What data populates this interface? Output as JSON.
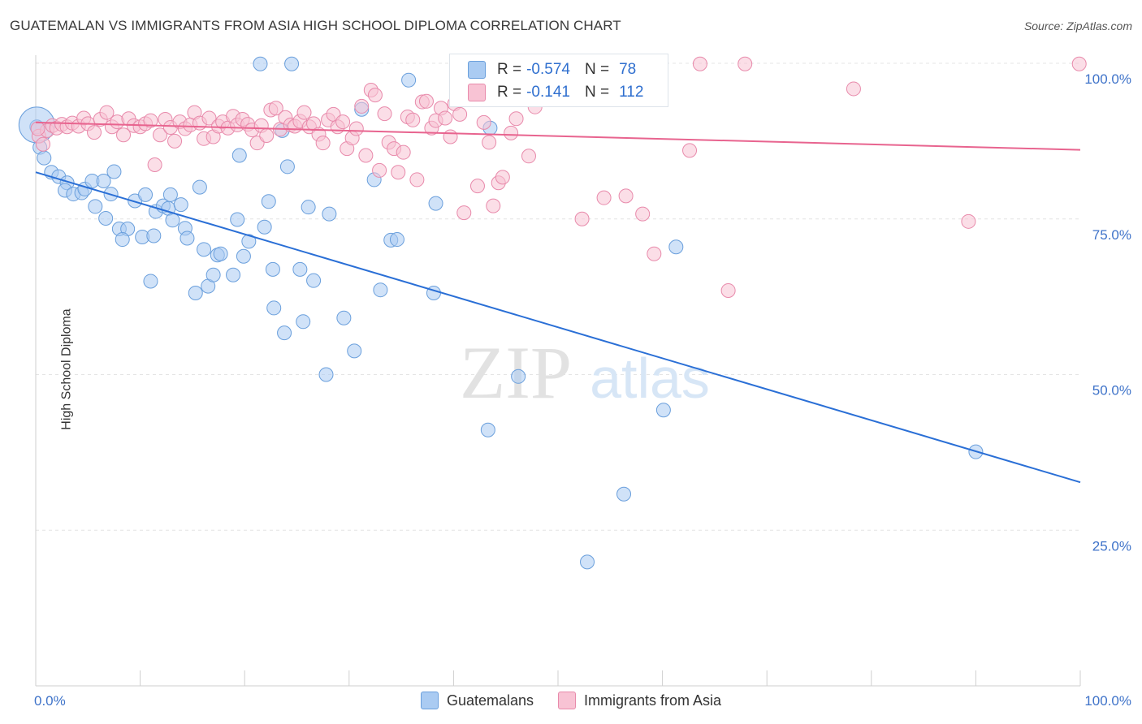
{
  "header": {
    "title": "GUATEMALAN VS IMMIGRANTS FROM ASIA HIGH SCHOOL DIPLOMA CORRELATION CHART",
    "source": "Source: ZipAtlas.com"
  },
  "watermark": {
    "zip": "ZIP",
    "atlas": "atlas"
  },
  "legend_top": {
    "rows": [
      {
        "r_label": "R =",
        "r_value": "-0.574",
        "n_label": "N =",
        "n_value": "78"
      },
      {
        "r_label": "R =",
        "r_value": "-0.141",
        "n_label": "N =",
        "n_value": "112"
      }
    ]
  },
  "legend_bottom": {
    "items": [
      "Guatemalans",
      "Immigrants from Asia"
    ]
  },
  "colors": {
    "blue_fill": "#aacbf2",
    "blue_stroke": "#6a9fdc",
    "blue_line": "#2a6fd6",
    "pink_fill": "#f8c3d4",
    "pink_stroke": "#e88aab",
    "pink_line": "#e8648f",
    "tick_text": "#3f73c9",
    "grid": "#e4e4e4"
  },
  "chart_data": {
    "type": "scatter",
    "title": "GUATEMALAN VS IMMIGRANTS FROM ASIA HIGH SCHOOL DIPLOMA CORRELATION CHART",
    "xlabel": "",
    "ylabel": "High School Diploma",
    "xlim": [
      0,
      100
    ],
    "ylim": [
      0,
      100
    ],
    "x_tick_labels": [
      "0.0%",
      "100.0%"
    ],
    "y_ticks": [
      25,
      50,
      75,
      100
    ],
    "y_tick_labels": [
      "25.0%",
      "50.0%",
      "75.0%",
      "100.0%"
    ],
    "grid": "horizontal dashed",
    "legend_placement": "top-center and bottom",
    "series": [
      {
        "name": "Guatemalans",
        "r": -0.574,
        "n": 78,
        "trend": {
          "x": [
            0,
            100
          ],
          "y": [
            82.5,
            32.7
          ]
        },
        "points": [
          [
            0.1,
            89.8
          ],
          [
            0.4,
            86.5
          ],
          [
            0.8,
            84.8
          ],
          [
            1.5,
            82.5
          ],
          [
            2.2,
            81.8
          ],
          [
            3.0,
            80.8
          ],
          [
            2.8,
            79.6
          ],
          [
            3.6,
            79.0
          ],
          [
            4.4,
            79.2
          ],
          [
            4.7,
            79.8
          ],
          [
            5.4,
            81.1
          ],
          [
            6.5,
            81.1
          ],
          [
            7.5,
            82.6
          ],
          [
            7.2,
            79.0
          ],
          [
            5.7,
            77.0
          ],
          [
            6.7,
            75.1
          ],
          [
            8.0,
            73.4
          ],
          [
            8.8,
            73.4
          ],
          [
            8.3,
            71.7
          ],
          [
            9.5,
            77.9
          ],
          [
            10.2,
            72.1
          ],
          [
            10.5,
            78.9
          ],
          [
            11.0,
            65.0
          ],
          [
            11.3,
            72.3
          ],
          [
            11.5,
            76.2
          ],
          [
            12.2,
            77.1
          ],
          [
            12.7,
            76.7
          ],
          [
            12.9,
            78.9
          ],
          [
            13.1,
            74.8
          ],
          [
            13.9,
            77.3
          ],
          [
            14.3,
            73.5
          ],
          [
            14.5,
            71.9
          ],
          [
            15.7,
            80.1
          ],
          [
            16.1,
            70.1
          ],
          [
            15.3,
            63.1
          ],
          [
            16.5,
            64.2
          ],
          [
            17.0,
            66.0
          ],
          [
            17.4,
            69.2
          ],
          [
            17.7,
            69.4
          ],
          [
            18.9,
            66.0
          ],
          [
            19.3,
            74.9
          ],
          [
            19.5,
            85.2
          ],
          [
            19.9,
            69.0
          ],
          [
            20.4,
            71.4
          ],
          [
            21.5,
            99.9
          ],
          [
            21.9,
            73.7
          ],
          [
            22.3,
            77.8
          ],
          [
            22.7,
            66.9
          ],
          [
            22.8,
            60.7
          ],
          [
            23.8,
            56.7
          ],
          [
            23.6,
            89.2
          ],
          [
            24.1,
            83.4
          ],
          [
            24.5,
            99.9
          ],
          [
            25.3,
            66.9
          ],
          [
            25.6,
            58.5
          ],
          [
            26.1,
            76.9
          ],
          [
            26.6,
            65.1
          ],
          [
            27.8,
            50.0
          ],
          [
            28.1,
            75.8
          ],
          [
            29.5,
            59.1
          ],
          [
            30.5,
            53.8
          ],
          [
            31.2,
            92.6
          ],
          [
            32.4,
            81.3
          ],
          [
            34.0,
            71.6
          ],
          [
            34.6,
            71.7
          ],
          [
            33.0,
            63.6
          ],
          [
            35.7,
            97.3
          ],
          [
            38.1,
            63.1
          ],
          [
            38.3,
            77.5
          ],
          [
            43.3,
            41.1
          ],
          [
            43.5,
            89.6
          ],
          [
            46.2,
            49.7
          ],
          [
            52.8,
            19.9
          ],
          [
            56.3,
            30.8
          ],
          [
            60.1,
            44.3
          ],
          [
            61.3,
            70.5
          ],
          [
            90.0,
            37.6
          ],
          [
            0.1,
            90.1
          ]
        ]
      },
      {
        "name": "Immigrants from Asia",
        "r": -0.141,
        "n": 112,
        "trend": {
          "x": [
            0,
            100
          ],
          "y": [
            90.5,
            86.1
          ]
        },
        "points": [
          [
            0.3,
            88.3
          ],
          [
            0.7,
            87.0
          ],
          [
            1.1,
            89.2
          ],
          [
            1.6,
            90.0
          ],
          [
            2.0,
            89.6
          ],
          [
            2.5,
            90.2
          ],
          [
            3.0,
            89.8
          ],
          [
            3.5,
            90.4
          ],
          [
            4.1,
            89.9
          ],
          [
            4.6,
            91.2
          ],
          [
            5.0,
            90.3
          ],
          [
            5.6,
            88.9
          ],
          [
            6.2,
            91.0
          ],
          [
            6.8,
            92.1
          ],
          [
            7.3,
            89.8
          ],
          [
            7.8,
            90.6
          ],
          [
            8.4,
            88.5
          ],
          [
            8.9,
            91.1
          ],
          [
            9.4,
            90.0
          ],
          [
            10.0,
            89.8
          ],
          [
            10.5,
            90.3
          ],
          [
            11.0,
            90.8
          ],
          [
            11.4,
            83.7
          ],
          [
            11.9,
            88.5
          ],
          [
            12.4,
            91.0
          ],
          [
            12.9,
            89.7
          ],
          [
            13.3,
            87.5
          ],
          [
            13.8,
            90.6
          ],
          [
            14.3,
            89.5
          ],
          [
            14.8,
            90.1
          ],
          [
            15.2,
            92.1
          ],
          [
            15.7,
            90.4
          ],
          [
            16.1,
            87.9
          ],
          [
            16.6,
            91.2
          ],
          [
            17.0,
            88.2
          ],
          [
            17.5,
            89.9
          ],
          [
            17.9,
            90.6
          ],
          [
            18.4,
            89.6
          ],
          [
            18.9,
            91.5
          ],
          [
            19.3,
            90.1
          ],
          [
            19.8,
            91.0
          ],
          [
            20.3,
            90.2
          ],
          [
            20.7,
            89.3
          ],
          [
            21.2,
            87.2
          ],
          [
            21.6,
            90.0
          ],
          [
            22.1,
            88.4
          ],
          [
            22.5,
            92.5
          ],
          [
            23.0,
            92.8
          ],
          [
            23.4,
            89.4
          ],
          [
            23.9,
            91.3
          ],
          [
            24.4,
            90.1
          ],
          [
            24.8,
            89.9
          ],
          [
            25.3,
            90.7
          ],
          [
            25.7,
            92.1
          ],
          [
            26.2,
            89.8
          ],
          [
            26.6,
            90.3
          ],
          [
            27.1,
            88.6
          ],
          [
            27.5,
            87.2
          ],
          [
            28.0,
            90.9
          ],
          [
            28.5,
            91.8
          ],
          [
            28.9,
            89.8
          ],
          [
            29.4,
            90.6
          ],
          [
            29.8,
            86.3
          ],
          [
            30.3,
            88.0
          ],
          [
            30.7,
            89.5
          ],
          [
            31.2,
            93.1
          ],
          [
            31.6,
            85.2
          ],
          [
            32.1,
            95.7
          ],
          [
            32.5,
            94.9
          ],
          [
            32.9,
            82.8
          ],
          [
            33.4,
            91.9
          ],
          [
            33.8,
            87.3
          ],
          [
            34.3,
            86.3
          ],
          [
            34.7,
            82.5
          ],
          [
            35.2,
            85.7
          ],
          [
            35.6,
            91.4
          ],
          [
            36.1,
            90.9
          ],
          [
            36.5,
            81.3
          ],
          [
            37.0,
            93.8
          ],
          [
            37.4,
            93.9
          ],
          [
            37.9,
            89.6
          ],
          [
            38.3,
            90.8
          ],
          [
            38.8,
            92.8
          ],
          [
            39.2,
            91.2
          ],
          [
            39.7,
            88.2
          ],
          [
            40.1,
            93.5
          ],
          [
            40.6,
            91.8
          ],
          [
            41.0,
            76.0
          ],
          [
            42.3,
            80.3
          ],
          [
            42.9,
            90.5
          ],
          [
            43.4,
            87.3
          ],
          [
            43.8,
            77.1
          ],
          [
            44.3,
            80.8
          ],
          [
            44.7,
            81.7
          ],
          [
            45.5,
            88.8
          ],
          [
            46.0,
            91.1
          ],
          [
            47.2,
            85.1
          ],
          [
            47.8,
            93.0
          ],
          [
            49.0,
            94.9
          ],
          [
            52.3,
            75.0
          ],
          [
            54.4,
            78.4
          ],
          [
            56.5,
            78.7
          ],
          [
            58.1,
            75.8
          ],
          [
            59.2,
            69.4
          ],
          [
            62.6,
            86.0
          ],
          [
            63.6,
            99.9
          ],
          [
            66.3,
            63.5
          ],
          [
            67.9,
            99.9
          ],
          [
            78.3,
            95.9
          ],
          [
            89.3,
            74.6
          ],
          [
            99.9,
            99.9
          ],
          [
            0.2,
            89.5
          ]
        ]
      }
    ]
  }
}
